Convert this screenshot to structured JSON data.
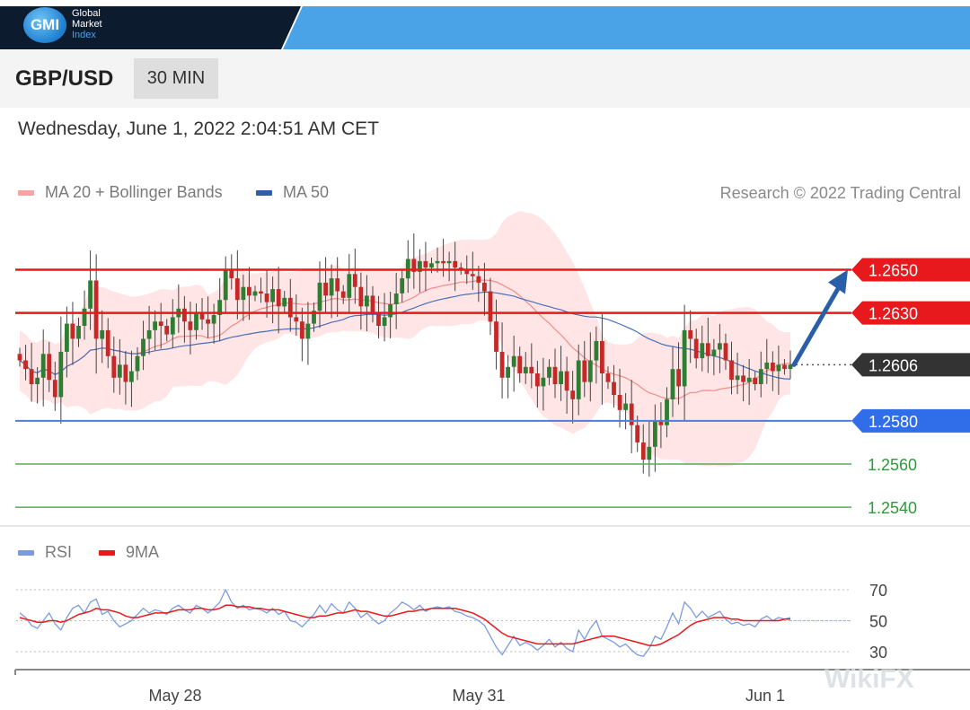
{
  "brand": {
    "logo_initials": "GMI",
    "name_line1": "Global",
    "name_line2": "Market",
    "name_line3": "Index"
  },
  "header": {
    "symbol": "GBP/USD",
    "timeframe": "30 MIN",
    "datetime": "Wednesday, June 1, 2022 2:04:51 AM CET"
  },
  "legend": {
    "ma20": "MA 20 + Bollinger Bands",
    "ma50": "MA 50",
    "credit": "Research © 2022 Trading Central"
  },
  "rsi_legend": {
    "rsi": "RSI",
    "ma9": "9MA"
  },
  "watermark": "WikiFX",
  "colors": {
    "bull": "#2e7d32",
    "bear": "#c62828",
    "resistance": "#e8191c",
    "support": "#4a7fe0",
    "target": "#5aa95a",
    "current": "#333333",
    "arrow": "#2a5ea8",
    "band": "#ffe0e0",
    "ma20": "#f28c8c",
    "ma50": "#4a6fb5",
    "rsi": "#7b9be0",
    "rsi_ma": "#e8191c"
  },
  "chart_data": [
    {
      "type": "candlestick",
      "y_range": [
        1.253,
        1.267
      ],
      "x_labels": [
        "May 28",
        "May 31",
        "Jun 1"
      ],
      "levels": [
        {
          "label": "1.2650",
          "value": 1.265,
          "kind": "resistance"
        },
        {
          "label": "1.2630",
          "value": 1.263,
          "kind": "resistance"
        },
        {
          "label": "1.2606",
          "value": 1.2606,
          "kind": "current"
        },
        {
          "label": "1.2580",
          "value": 1.258,
          "kind": "support"
        },
        {
          "label": "1.2560",
          "value": 1.256,
          "kind": "target"
        },
        {
          "label": "1.2540",
          "value": 1.254,
          "kind": "target"
        }
      ],
      "forecast": {
        "from": 1.2606,
        "to": 1.265,
        "direction": "up"
      },
      "close": [
        1.2608,
        1.2604,
        1.2597,
        1.26,
        1.2611,
        1.2599,
        1.2591,
        1.2612,
        1.2625,
        1.2618,
        1.2624,
        1.2632,
        1.2645,
        1.2618,
        1.2622,
        1.261,
        1.26,
        1.2606,
        1.2598,
        1.2603,
        1.261,
        1.2618,
        1.2622,
        1.2626,
        1.2624,
        1.262,
        1.2628,
        1.2632,
        1.2626,
        1.2622,
        1.263,
        1.2627,
        1.2625,
        1.2629,
        1.2636,
        1.265,
        1.2646,
        1.2636,
        1.2642,
        1.2638,
        1.264,
        1.2639,
        1.2635,
        1.2641,
        1.2633,
        1.2637,
        1.2628,
        1.2626,
        1.2618,
        1.2625,
        1.2631,
        1.2644,
        1.2638,
        1.2646,
        1.264,
        1.2637,
        1.2648,
        1.2642,
        1.2633,
        1.2638,
        1.263,
        1.2624,
        1.2628,
        1.2634,
        1.2639,
        1.2646,
        1.2655,
        1.2649,
        1.2654,
        1.2651,
        1.2653,
        1.2654,
        1.2653,
        1.2654,
        1.2651,
        1.265,
        1.2648,
        1.2647,
        1.2644,
        1.264,
        1.2626,
        1.2612,
        1.26,
        1.2605,
        1.261,
        1.2602,
        1.2605,
        1.2602,
        1.2596,
        1.26,
        1.2605,
        1.2597,
        1.2603,
        1.2594,
        1.259,
        1.2608,
        1.2598,
        1.2608,
        1.2617,
        1.2602,
        1.2598,
        1.2592,
        1.2585,
        1.2588,
        1.2578,
        1.257,
        1.2562,
        1.2568,
        1.258,
        1.2578,
        1.259,
        1.2604,
        1.2596,
        1.2622,
        1.2618,
        1.2609,
        1.2616,
        1.261,
        1.2613,
        1.2616,
        1.2608,
        1.2599,
        1.2601,
        1.2598,
        1.26,
        1.2597,
        1.2604,
        1.2607,
        1.2603,
        1.2606,
        1.2604,
        1.2606
      ]
    },
    {
      "type": "line",
      "title": "RSI",
      "y_ticks": [
        30,
        50,
        70
      ],
      "series": [
        {
          "name": "RSI",
          "values": [
            55,
            52,
            47,
            45,
            50,
            55,
            48,
            44,
            52,
            58,
            60,
            55,
            62,
            64,
            54,
            56,
            50,
            46,
            48,
            50,
            54,
            58,
            55,
            57,
            56,
            54,
            58,
            60,
            57,
            55,
            60,
            58,
            55,
            58,
            62,
            70,
            62,
            58,
            60,
            57,
            58,
            57,
            55,
            58,
            54,
            56,
            50,
            49,
            46,
            50,
            54,
            60,
            55,
            61,
            57,
            55,
            62,
            58,
            52,
            55,
            51,
            48,
            50,
            55,
            58,
            62,
            60,
            57,
            60,
            56,
            58,
            59,
            58,
            59,
            56,
            55,
            53,
            52,
            50,
            47,
            40,
            33,
            28,
            34,
            40,
            34,
            36,
            34,
            31,
            34,
            38,
            33,
            36,
            32,
            30,
            44,
            38,
            45,
            50,
            40,
            38,
            36,
            33,
            35,
            31,
            28,
            27,
            32,
            40,
            38,
            46,
            55,
            48,
            62,
            58,
            52,
            56,
            52,
            54,
            56,
            51,
            48,
            49,
            47,
            48,
            46,
            51,
            53,
            50,
            52,
            51,
            52
          ]
        },
        {
          "name": "9MA",
          "values": [
            52,
            51,
            50,
            49,
            49,
            50,
            50,
            49,
            50,
            52,
            54,
            55,
            56,
            58,
            57,
            57,
            56,
            55,
            53,
            52,
            52,
            53,
            54,
            55,
            55,
            55,
            56,
            57,
            57,
            57,
            58,
            58,
            57,
            57,
            58,
            60,
            60,
            59,
            59,
            59,
            58,
            58,
            57,
            57,
            57,
            56,
            55,
            54,
            53,
            52,
            52,
            53,
            53,
            54,
            55,
            55,
            56,
            57,
            56,
            56,
            55,
            54,
            53,
            53,
            54,
            55,
            56,
            56,
            57,
            57,
            58,
            58,
            58,
            58,
            58,
            57,
            56,
            55,
            53,
            51,
            48,
            45,
            42,
            40,
            39,
            38,
            37,
            36,
            35,
            35,
            35,
            35,
            35,
            35,
            35,
            36,
            37,
            38,
            39,
            40,
            40,
            40,
            39,
            38,
            37,
            36,
            35,
            34,
            34,
            35,
            37,
            39,
            41,
            44,
            47,
            49,
            50,
            51,
            52,
            52,
            52,
            51,
            51,
            50,
            50,
            50,
            50,
            50,
            50,
            50,
            51,
            51
          ]
        }
      ]
    }
  ]
}
